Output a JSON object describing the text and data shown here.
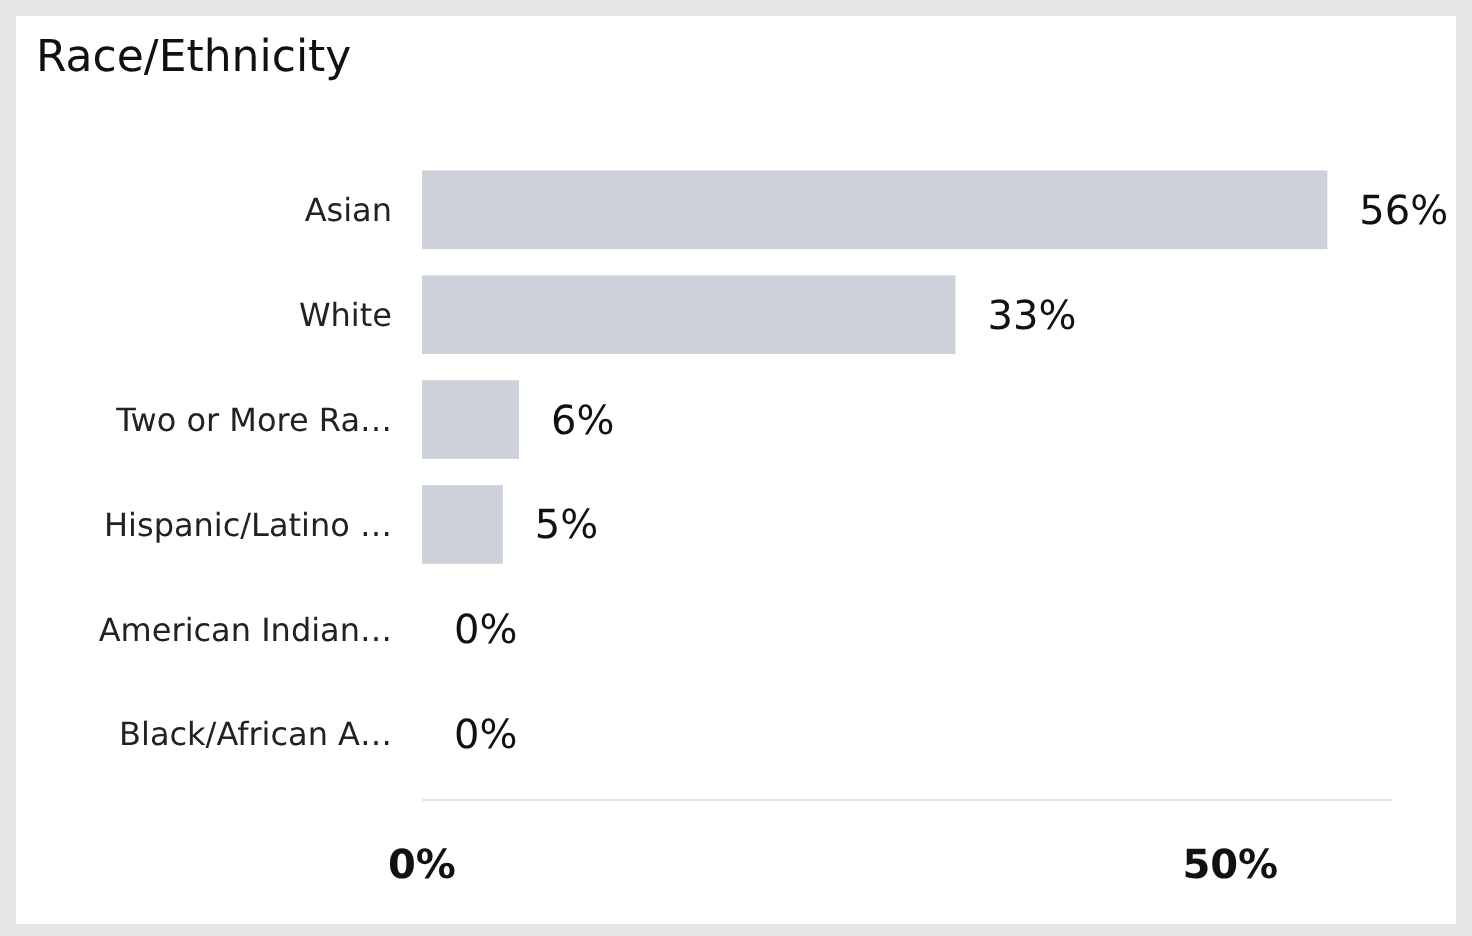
{
  "chart_data": {
    "type": "bar",
    "orientation": "horizontal",
    "title": "Race/Ethnicity",
    "categories": [
      "Asian",
      "White",
      "Two or More Ra…",
      "Hispanic/Latino …",
      "American Indian…",
      "Black/African A…"
    ],
    "values": [
      56,
      33,
      6,
      5,
      0,
      0
    ],
    "value_labels": [
      "56%",
      "33%",
      "6%",
      "5%",
      "0%",
      "0%"
    ],
    "color": "#cdd1da",
    "xticks": [
      {
        "value": 0,
        "label": "0%"
      },
      {
        "value": 50,
        "label": "50%"
      }
    ],
    "xlim": [
      0,
      60
    ],
    "grid": false
  }
}
